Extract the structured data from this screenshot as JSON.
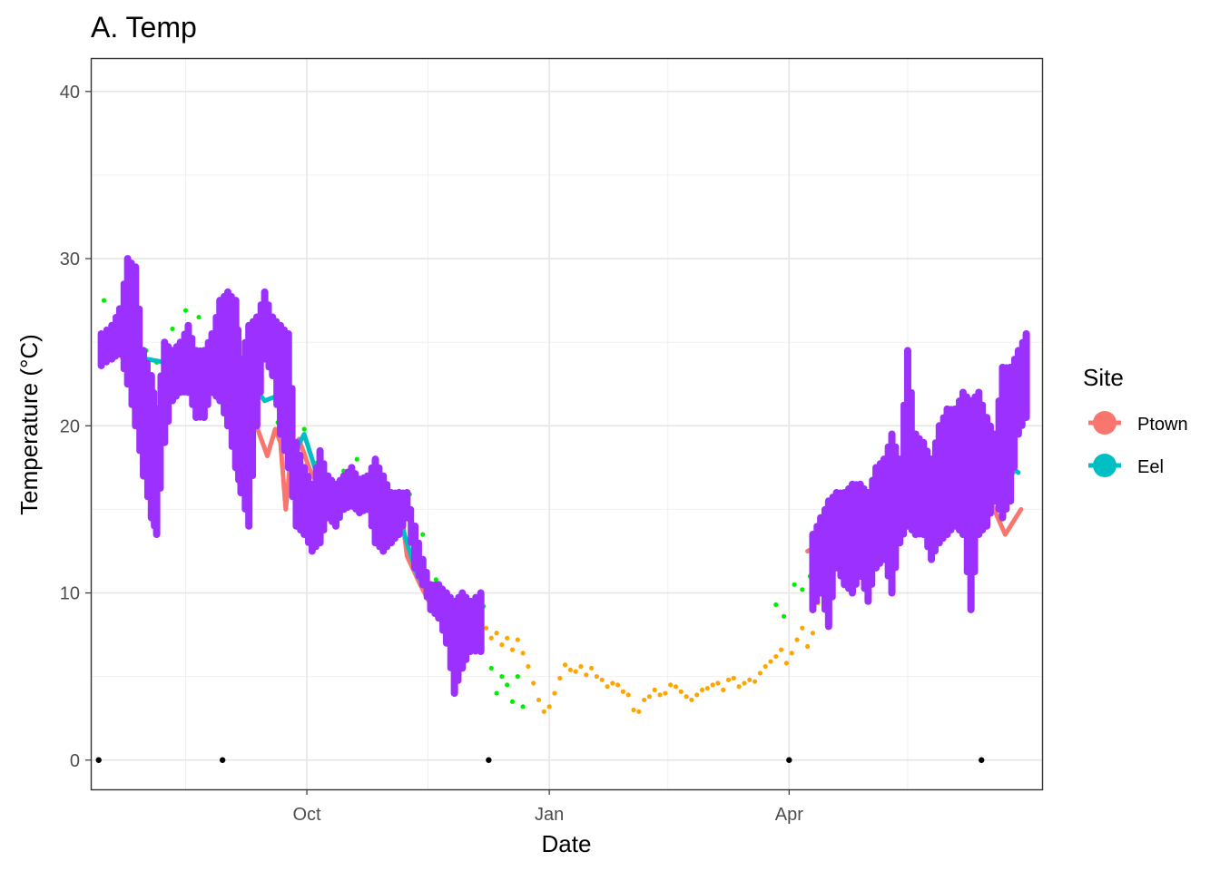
{
  "chart_data": {
    "type": "scatter",
    "title": "A. Temp",
    "xlabel": "Date",
    "ylabel": "Temperature (°C)",
    "x_axis": {
      "type": "date",
      "range": [
        "2019-07-11",
        "2020-07-06"
      ],
      "ticks": [
        {
          "date": "2019-10-01",
          "label": "Oct"
        },
        {
          "date": "2020-01-01",
          "label": "Jan"
        },
        {
          "date": "2020-04-01",
          "label": "Apr"
        }
      ],
      "minor_ticks": [
        "2019-08-16",
        "2019-11-16",
        "2020-02-15",
        "2020-05-16"
      ]
    },
    "y_axis": {
      "range": [
        -1.75,
        42.0
      ],
      "ticks": [
        0,
        10,
        20,
        30,
        40
      ],
      "tick_labels": [
        "0",
        "10",
        "20",
        "30",
        "40"
      ],
      "minor_ticks": [
        5,
        15,
        25,
        35
      ]
    },
    "grid": true,
    "legend": {
      "title": "Site",
      "position": "right",
      "entries": [
        {
          "label": "Ptown",
          "color": "#F8766D"
        },
        {
          "label": "Eel",
          "color": "#00BFC4"
        }
      ]
    },
    "series": [
      {
        "name": "Ptown",
        "color": "#F8766D",
        "style": "line",
        "x": [
          "2019-07-15",
          "2019-07-20",
          "2019-07-25",
          "2019-07-30",
          "2019-08-04",
          "2019-08-09",
          "2019-08-14",
          "2019-08-19",
          "2019-08-24",
          "2019-08-29",
          "2019-09-03",
          "2019-09-08",
          "2019-09-10",
          "2019-09-13",
          "2019-09-16",
          "2019-09-19",
          "2019-09-21",
          "2019-09-23",
          "2019-09-25",
          "2019-09-28",
          "2019-10-03",
          "2019-10-08",
          "2019-10-13",
          "2019-10-18",
          "2019-10-23",
          "2019-10-28",
          "2019-11-02",
          "2019-11-05",
          "2019-11-08",
          "2019-11-13",
          "2019-11-18",
          "2019-11-23",
          "2019-11-28",
          "2019-12-03",
          "2019-12-06",
          "2020-04-08",
          "2020-04-15",
          "2020-04-25",
          "2020-05-05",
          "2020-05-15",
          "2020-05-25",
          "2020-06-01",
          "2020-06-08",
          "2020-06-15",
          "2020-06-22",
          "2020-06-28"
        ],
        "y": [
          24.2,
          24.8,
          23.6,
          21.0,
          17.5,
          22.5,
          23.0,
          24.5,
          23.4,
          22.6,
          20.5,
          19.5,
          20.8,
          19.5,
          18.2,
          19.8,
          19.0,
          15.0,
          18.3,
          19.2,
          17.0,
          16.0,
          15.5,
          16.5,
          16.0,
          15.2,
          14.8,
          16.1,
          12.2,
          10.5,
          9.0,
          8.0,
          8.5,
          8.2,
          8.8,
          12.5,
          13.0,
          14.0,
          14.5,
          15.0,
          15.2,
          14.6,
          15.5,
          16.0,
          13.5,
          15.0
        ]
      },
      {
        "name": "Eel",
        "color": "#00BFC4",
        "style": "line",
        "x": [
          "2019-07-25",
          "2019-08-01",
          "2019-08-08",
          "2019-08-15",
          "2019-08-22",
          "2019-08-29",
          "2019-09-05",
          "2019-09-10",
          "2019-09-15",
          "2019-09-20",
          "2019-09-25",
          "2019-09-30",
          "2019-10-05",
          "2019-10-10",
          "2019-10-15",
          "2019-10-22",
          "2019-10-29",
          "2019-11-05",
          "2019-11-12",
          "2019-11-19",
          "2019-11-26",
          "2019-12-03",
          "2020-04-12",
          "2020-04-20",
          "2020-05-01",
          "2020-05-10",
          "2020-05-20",
          "2020-05-30",
          "2020-06-10",
          "2020-06-20",
          "2020-06-27"
        ],
        "y": [
          24.5,
          24.0,
          23.8,
          24.5,
          24.2,
          23.5,
          23.2,
          22.5,
          21.5,
          21.8,
          18.0,
          19.5,
          17.0,
          16.5,
          16.0,
          15.5,
          14.9,
          14.5,
          11.0,
          9.5,
          8.0,
          8.5,
          12.4,
          13.0,
          14.0,
          15.0,
          16.0,
          16.5,
          17.0,
          18.0,
          17.2
        ]
      },
      {
        "name": "",
        "color": "#9B30FF",
        "style": "band",
        "x": [
          "2019-07-15",
          "2019-07-19",
          "2019-07-22",
          "2019-07-25",
          "2019-07-28",
          "2019-07-31",
          "2019-08-03",
          "2019-08-05",
          "2019-08-08",
          "2019-08-11",
          "2019-08-14",
          "2019-08-17",
          "2019-08-20",
          "2019-08-23",
          "2019-08-26",
          "2019-08-29",
          "2019-09-01",
          "2019-09-04",
          "2019-09-06",
          "2019-09-09",
          "2019-09-12",
          "2019-09-15",
          "2019-09-18",
          "2019-09-21",
          "2019-09-24",
          "2019-09-27",
          "2019-09-30",
          "2019-10-03",
          "2019-10-06",
          "2019-10-09",
          "2019-10-12",
          "2019-10-15",
          "2019-10-18",
          "2019-10-21",
          "2019-10-24",
          "2019-10-27",
          "2019-10-30",
          "2019-11-02",
          "2019-11-05",
          "2019-11-08",
          "2019-11-11",
          "2019-11-14",
          "2019-11-17",
          "2019-11-20",
          "2019-11-23",
          "2019-11-26",
          "2019-11-29",
          "2019-12-02",
          "2019-12-06",
          "2020-04-10",
          "2020-04-13",
          "2020-04-16",
          "2020-04-19",
          "2020-04-22",
          "2020-04-25",
          "2020-04-28",
          "2020-05-01",
          "2020-05-04",
          "2020-05-07",
          "2020-05-10",
          "2020-05-13",
          "2020-05-16",
          "2020-05-19",
          "2020-05-22",
          "2020-05-25",
          "2020-05-28",
          "2020-05-31",
          "2020-06-03",
          "2020-06-06",
          "2020-06-09",
          "2020-06-12",
          "2020-06-15",
          "2020-06-18",
          "2020-06-21",
          "2020-06-24",
          "2020-06-27",
          "2020-06-30"
        ],
        "ymin": [
          23.6,
          24.0,
          24.3,
          22.5,
          20.0,
          17.0,
          14.5,
          13.5,
          19.0,
          21.5,
          22.0,
          22.0,
          20.5,
          20.5,
          22.0,
          21.5,
          20.0,
          17.5,
          16.0,
          14.0,
          20.0,
          24.0,
          23.0,
          19.5,
          17.5,
          14.0,
          13.5,
          12.5,
          13.0,
          14.5,
          14.0,
          15.0,
          15.2,
          14.8,
          15.0,
          13.0,
          12.5,
          13.0,
          13.5,
          14.5,
          11.5,
          10.5,
          9.0,
          8.5,
          7.0,
          4.0,
          5.5,
          6.5,
          6.5,
          9.0,
          10.0,
          8.0,
          11.5,
          10.5,
          10.0,
          11.0,
          9.5,
          11.5,
          12.0,
          10.0,
          13.0,
          14.0,
          13.5,
          13.5,
          12.0,
          13.0,
          13.5,
          14.0,
          13.5,
          9.0,
          13.5,
          14.0,
          15.5,
          14.5,
          15.5,
          19.5,
          20.5
        ],
        "ymax": [
          25.5,
          26.0,
          27.0,
          30.0,
          29.5,
          24.5,
          23.0,
          21.0,
          25.0,
          24.5,
          25.0,
          26.0,
          24.5,
          24.5,
          25.5,
          27.5,
          28.0,
          27.5,
          24.0,
          26.0,
          26.5,
          28.0,
          26.5,
          26.0,
          25.5,
          19.0,
          17.5,
          16.5,
          18.5,
          17.0,
          16.5,
          17.0,
          17.5,
          16.8,
          17.0,
          18.0,
          17.0,
          16.0,
          16.0,
          16.0,
          14.0,
          12.0,
          10.5,
          10.5,
          10.0,
          9.5,
          10.0,
          9.5,
          10.0,
          13.5,
          14.5,
          15.5,
          16.0,
          16.0,
          16.5,
          16.5,
          16.0,
          17.5,
          18.0,
          19.5,
          18.0,
          24.5,
          19.5,
          19.0,
          18.0,
          20.0,
          21.0,
          21.0,
          22.0,
          21.5,
          22.0,
          20.5,
          19.5,
          23.5,
          23.5,
          24.5,
          25.5
        ]
      },
      {
        "name": "",
        "color": "#00EE00",
        "style": "points",
        "x": [
          "2019-07-16",
          "2019-07-21",
          "2019-07-27",
          "2019-08-01",
          "2019-08-05",
          "2019-08-11",
          "2019-08-16",
          "2019-08-21",
          "2019-08-26",
          "2019-08-31",
          "2019-09-05",
          "2019-09-10",
          "2019-09-15",
          "2019-09-20",
          "2019-09-25",
          "2019-09-30",
          "2019-10-05",
          "2019-10-10",
          "2019-10-15",
          "2019-10-20",
          "2019-10-25",
          "2019-10-30",
          "2019-11-04",
          "2019-11-09",
          "2019-11-14",
          "2019-11-19",
          "2019-11-24",
          "2019-11-29",
          "2019-12-04",
          "2019-12-07",
          "2019-12-10",
          "2019-12-12",
          "2019-12-14",
          "2019-12-16",
          "2019-12-18",
          "2019-12-20",
          "2019-12-22",
          "2020-03-27",
          "2020-03-30",
          "2020-04-03",
          "2020-04-06",
          "2020-04-09",
          "2020-04-12",
          "2020-04-15",
          "2020-04-18",
          "2020-04-21",
          "2020-04-25",
          "2020-05-05",
          "2020-05-15",
          "2020-05-25",
          "2020-06-05",
          "2020-06-15",
          "2020-06-25"
        ],
        "y": [
          27.5,
          26.2,
          25.2,
          24.5,
          23.8,
          25.8,
          26.9,
          26.5,
          25.0,
          23.5,
          22.8,
          22.0,
          21.5,
          20.2,
          17.5,
          19.8,
          17.8,
          16.5,
          17.3,
          18.0,
          17.0,
          16.2,
          15.7,
          15.9,
          13.5,
          10.8,
          8.0,
          6.2,
          7.8,
          9.2,
          5.5,
          4.0,
          5.0,
          4.5,
          3.5,
          5.0,
          3.2,
          9.3,
          8.6,
          10.5,
          10.2,
          11.0,
          11.5,
          12.5,
          14.0,
          13.5,
          14.5,
          15.0,
          15.5,
          16.8,
          17.5,
          18.5,
          17.2
        ]
      },
      {
        "name": "",
        "color": "#FFA500",
        "style": "points",
        "x": [
          "2019-12-03",
          "2019-12-06",
          "2019-12-08",
          "2019-12-10",
          "2019-12-12",
          "2019-12-14",
          "2019-12-16",
          "2019-12-18",
          "2019-12-20",
          "2019-12-22",
          "2019-12-24",
          "2019-12-26",
          "2019-12-28",
          "2019-12-30",
          "2020-01-01",
          "2020-01-03",
          "2020-01-05",
          "2020-01-07",
          "2020-01-09",
          "2020-01-11",
          "2020-01-13",
          "2020-01-15",
          "2020-01-17",
          "2020-01-19",
          "2020-01-21",
          "2020-01-23",
          "2020-01-25",
          "2020-01-27",
          "2020-01-29",
          "2020-01-31",
          "2020-02-02",
          "2020-02-04",
          "2020-02-06",
          "2020-02-08",
          "2020-02-10",
          "2020-02-12",
          "2020-02-14",
          "2020-02-16",
          "2020-02-18",
          "2020-02-20",
          "2020-02-22",
          "2020-02-24",
          "2020-02-26",
          "2020-02-28",
          "2020-03-01",
          "2020-03-03",
          "2020-03-05",
          "2020-03-07",
          "2020-03-09",
          "2020-03-11",
          "2020-03-13",
          "2020-03-15",
          "2020-03-17",
          "2020-03-19",
          "2020-03-21",
          "2020-03-23",
          "2020-03-25",
          "2020-03-27",
          "2020-03-29",
          "2020-03-31",
          "2020-04-02",
          "2020-04-04",
          "2020-04-06",
          "2020-04-08",
          "2020-04-10",
          "2020-04-12"
        ],
        "y": [
          8.0,
          7.6,
          7.9,
          7.3,
          7.6,
          6.9,
          7.3,
          6.6,
          7.2,
          6.4,
          5.6,
          4.6,
          3.6,
          2.9,
          3.2,
          4.0,
          4.9,
          5.7,
          5.4,
          5.3,
          5.6,
          5.1,
          5.5,
          5.0,
          4.8,
          4.4,
          4.6,
          4.5,
          4.1,
          3.9,
          3.0,
          2.9,
          3.6,
          3.8,
          4.2,
          3.9,
          4.0,
          4.5,
          4.4,
          4.1,
          3.8,
          3.6,
          3.9,
          4.2,
          4.3,
          4.5,
          4.6,
          4.2,
          4.8,
          4.9,
          4.4,
          4.6,
          4.8,
          4.7,
          5.2,
          5.6,
          5.9,
          6.2,
          6.6,
          5.8,
          6.4,
          7.2,
          7.9,
          6.8,
          7.6,
          9.4
        ]
      },
      {
        "name": "",
        "color": "#000000",
        "style": "points",
        "x": [
          "2019-07-14",
          "2019-08-30",
          "2019-12-09",
          "2020-04-01",
          "2020-06-13"
        ],
        "y": [
          0,
          0,
          0,
          0,
          0
        ]
      }
    ]
  }
}
